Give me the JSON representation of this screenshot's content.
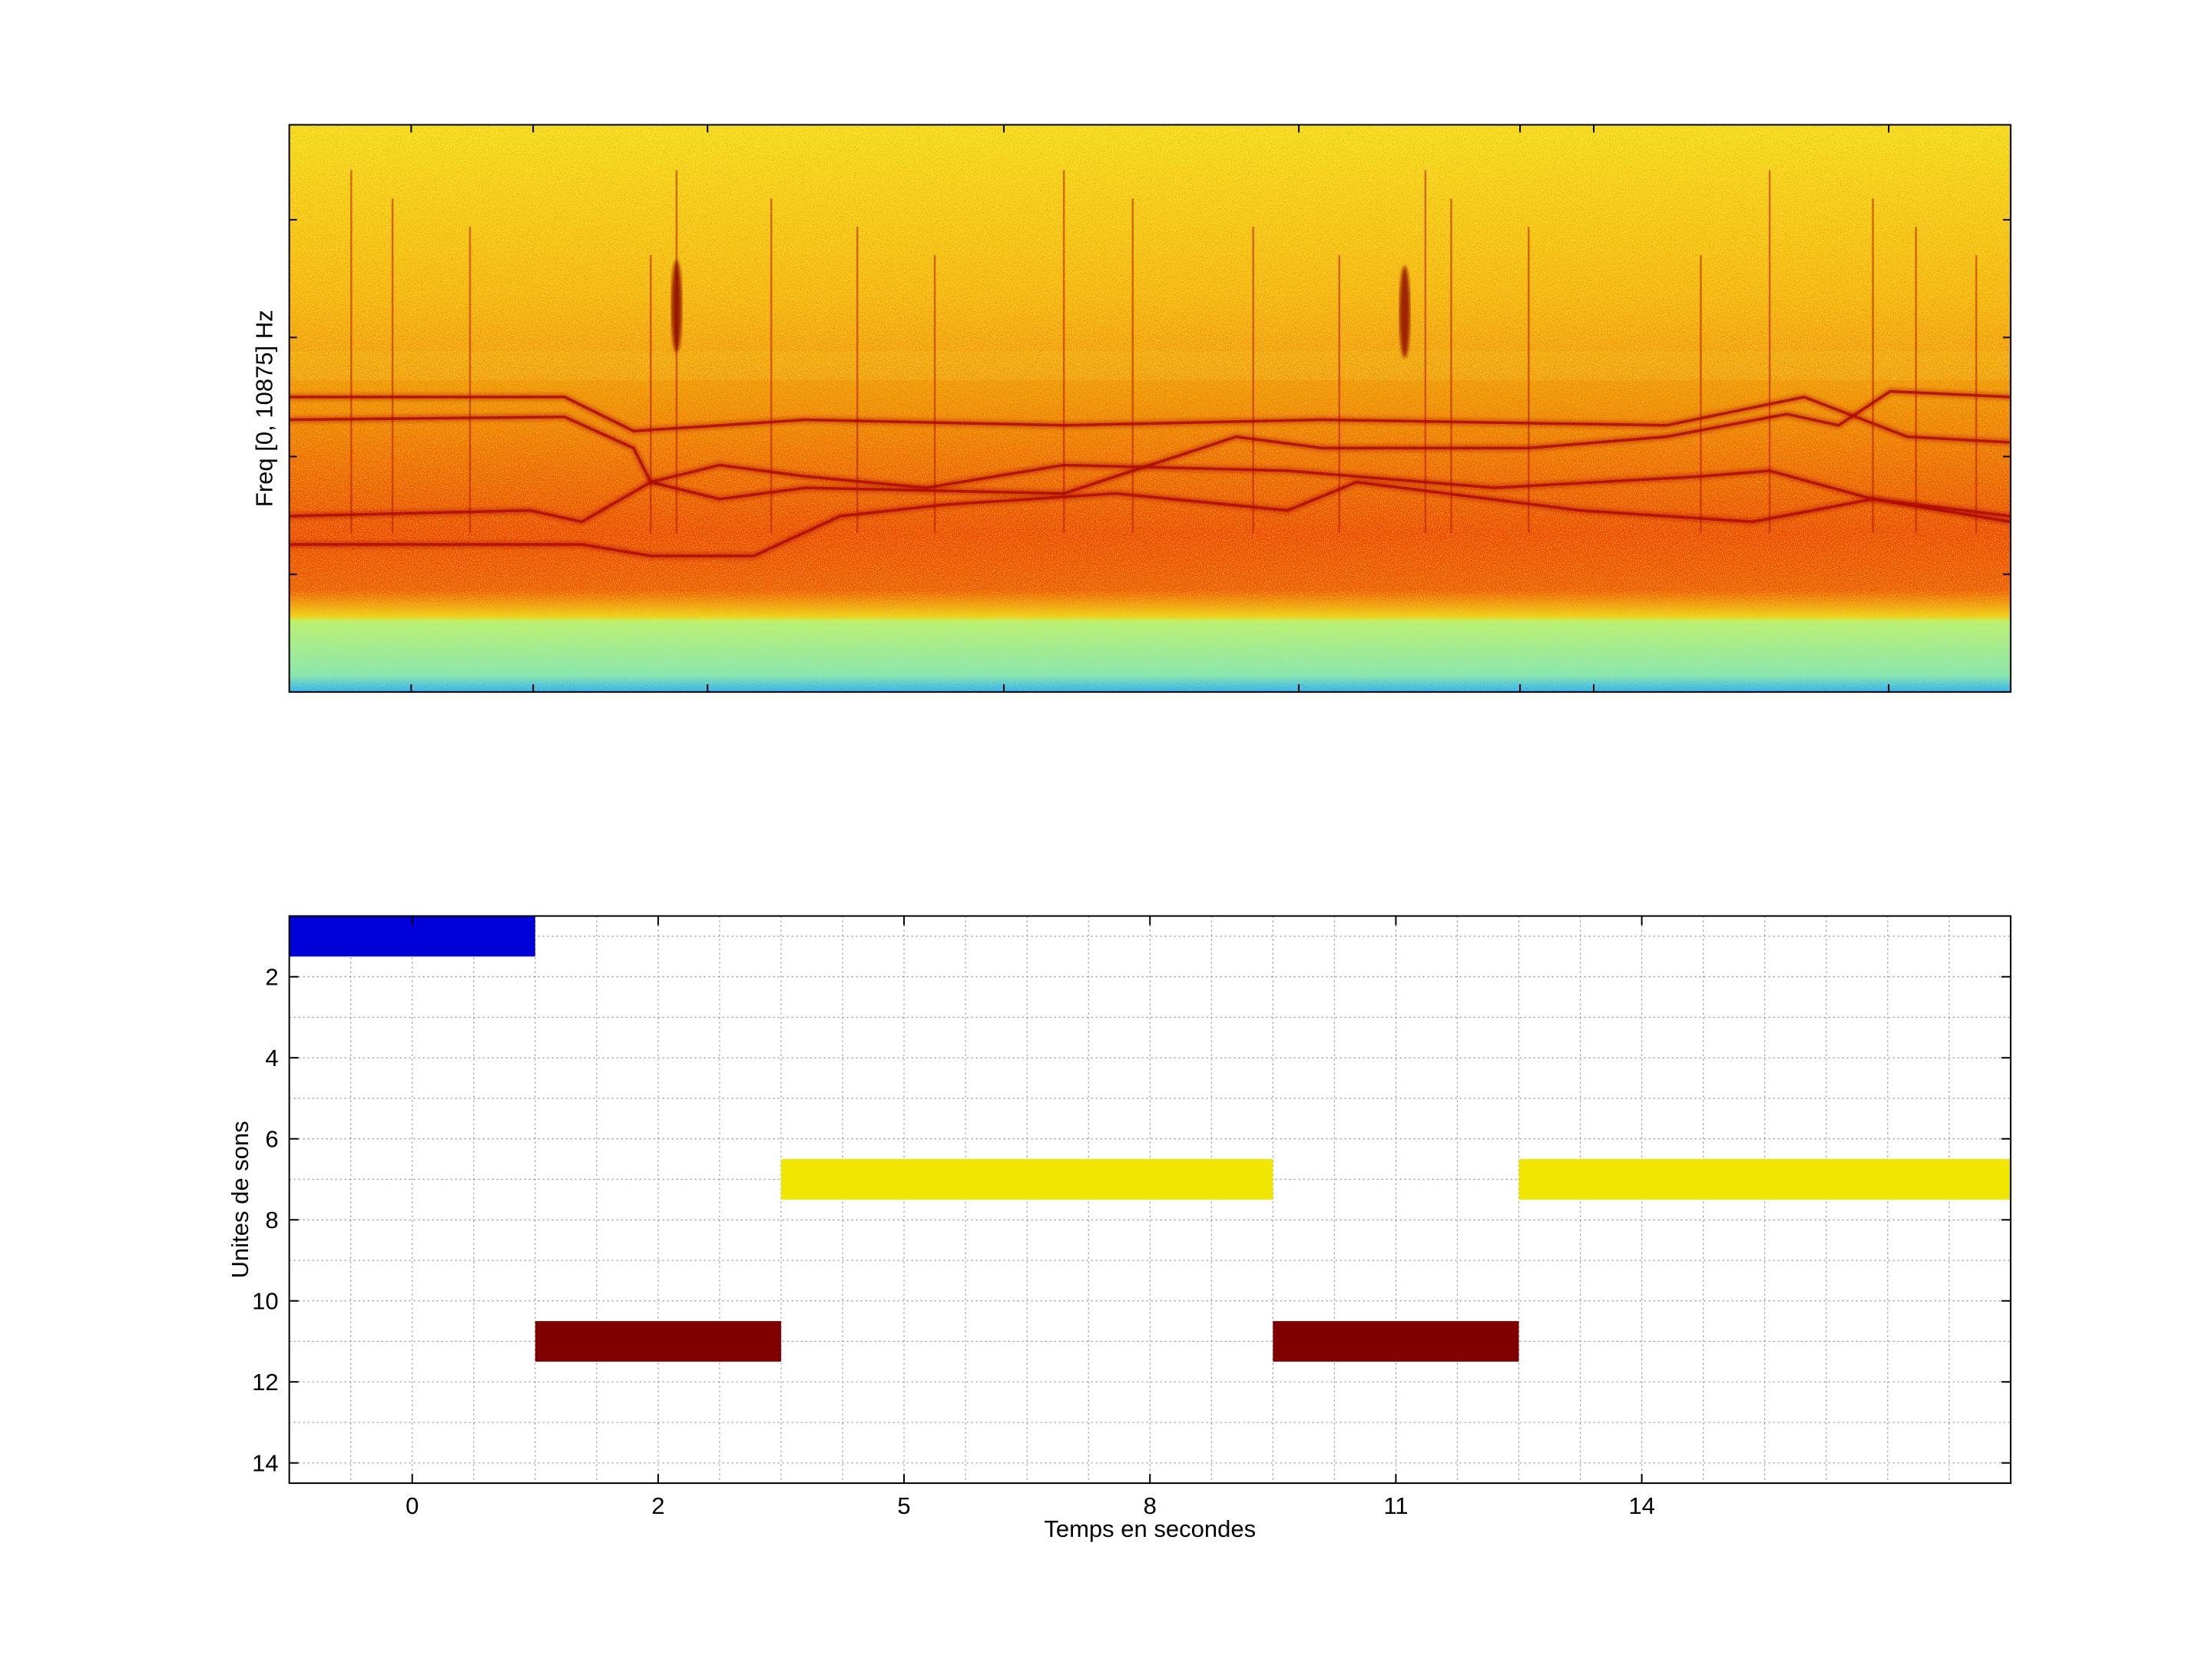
{
  "chart_data": [
    {
      "type": "heatmap",
      "title": "",
      "xlabel": "",
      "ylabel": "Freq [0, 10875] Hz",
      "x_ticks_labels_shown": false,
      "y_ticks_labels_shown": false,
      "colormap": "jet",
      "grid": false,
      "traces_description_units": "normalized time 0-1 vs normalized frequency 0-1 (0 = bottom)",
      "traces": [
        {
          "points": [
            [
              0.0,
              0.48
            ],
            [
              0.16,
              0.485
            ],
            [
              0.2,
              0.43
            ],
            [
              0.21,
              0.37
            ],
            [
              0.25,
              0.34
            ],
            [
              0.3,
              0.36
            ],
            [
              0.45,
              0.35
            ],
            [
              0.55,
              0.45
            ],
            [
              0.6,
              0.43
            ],
            [
              0.72,
              0.43
            ],
            [
              0.8,
              0.45
            ],
            [
              0.87,
              0.49
            ],
            [
              0.9,
              0.47
            ],
            [
              0.93,
              0.53
            ],
            [
              1.0,
              0.52
            ]
          ]
        },
        {
          "points": [
            [
              0.0,
              0.31
            ],
            [
              0.14,
              0.32
            ],
            [
              0.17,
              0.3
            ],
            [
              0.21,
              0.37
            ],
            [
              0.25,
              0.4
            ],
            [
              0.3,
              0.38
            ],
            [
              0.37,
              0.36
            ],
            [
              0.45,
              0.4
            ],
            [
              0.58,
              0.39
            ],
            [
              0.7,
              0.36
            ],
            [
              0.82,
              0.38
            ],
            [
              0.86,
              0.39
            ],
            [
              0.92,
              0.34
            ],
            [
              1.0,
              0.3
            ]
          ]
        },
        {
          "points": [
            [
              0.0,
              0.26
            ],
            [
              0.17,
              0.26
            ],
            [
              0.21,
              0.24
            ],
            [
              0.27,
              0.24
            ],
            [
              0.32,
              0.31
            ],
            [
              0.38,
              0.33
            ],
            [
              0.48,
              0.35
            ],
            [
              0.58,
              0.32
            ],
            [
              0.62,
              0.37
            ],
            [
              0.75,
              0.32
            ],
            [
              0.85,
              0.3
            ],
            [
              0.92,
              0.34
            ],
            [
              1.0,
              0.31
            ]
          ]
        },
        {
          "points": [
            [
              0.0,
              0.52
            ],
            [
              0.16,
              0.52
            ],
            [
              0.2,
              0.46
            ],
            [
              0.3,
              0.48
            ],
            [
              0.45,
              0.47
            ],
            [
              0.6,
              0.48
            ],
            [
              0.8,
              0.47
            ],
            [
              0.88,
              0.52
            ],
            [
              0.94,
              0.45
            ],
            [
              1.0,
              0.44
            ]
          ]
        }
      ],
      "transients_x_normalized": [
        0.036,
        0.06,
        0.105,
        0.21,
        0.225,
        0.28,
        0.33,
        0.375,
        0.45,
        0.49,
        0.56,
        0.61,
        0.66,
        0.675,
        0.72,
        0.82,
        0.86,
        0.92,
        0.945,
        0.98
      ]
    },
    {
      "type": "bar",
      "orientation": "horizontal-segments",
      "title": "",
      "xlabel": "Temps en secondes",
      "ylabel": "Unites de sons",
      "xlim": [
        -1.25,
        16.25
      ],
      "ylim": [
        14.5,
        0.5
      ],
      "y_reversed": true,
      "grid": true,
      "x_tick_labels": [
        "0",
        "2",
        "5",
        "8",
        "11",
        "14"
      ],
      "y_tick_labels": [
        "2",
        "4",
        "6",
        "8",
        "10",
        "12",
        "14"
      ],
      "segments": [
        {
          "unit": 1,
          "start": -1.25,
          "end": 1.25,
          "color": "#0000d8"
        },
        {
          "unit": 11,
          "start": 1.25,
          "end": 3.75,
          "color": "#800000"
        },
        {
          "unit": 7,
          "start": 3.75,
          "end": 8.75,
          "color": "#f0e600"
        },
        {
          "unit": 11,
          "start": 8.75,
          "end": 11.25,
          "color": "#800000"
        },
        {
          "unit": 7,
          "start": 11.25,
          "end": 16.25,
          "color": "#f0e600"
        }
      ]
    }
  ]
}
